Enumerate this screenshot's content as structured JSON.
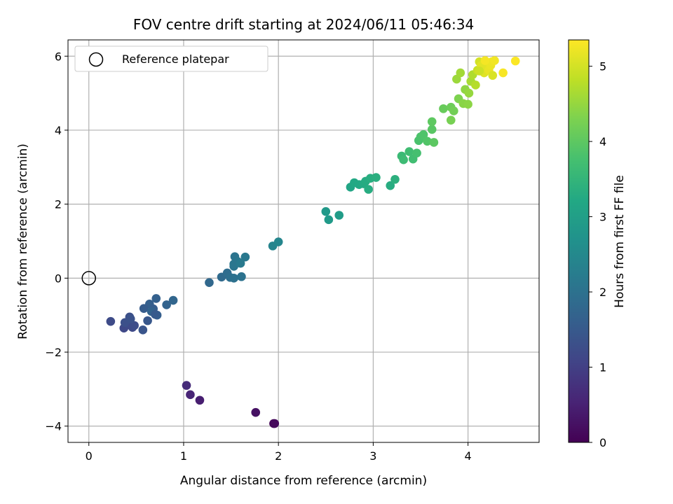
{
  "chart_data": {
    "type": "scatter",
    "title": "FOV centre drift starting at 2024/06/11 05:46:34",
    "xlabel": "Angular distance from reference (arcmin)",
    "ylabel": "Rotation from reference (arcmin)",
    "xlim": [
      -0.22,
      4.75
    ],
    "ylim": [
      -4.44,
      6.44
    ],
    "xticks": [
      0,
      1,
      2,
      3,
      4
    ],
    "yticks": [
      -4,
      -2,
      0,
      2,
      4,
      6
    ],
    "xtick_labels": [
      "0",
      "1",
      "2",
      "3",
      "4"
    ],
    "ytick_labels": [
      "−4",
      "−2",
      "0",
      "2",
      "4",
      "6"
    ],
    "grid": true,
    "legend": {
      "position": "top-left",
      "entries": [
        {
          "label": "Reference platepar",
          "marker": "open-circle",
          "color": "#000000"
        }
      ]
    },
    "reference_point": {
      "x": 0,
      "y": 0
    },
    "colorbar": {
      "label": "Hours from first FF file",
      "colormap": "viridis",
      "range": [
        0,
        5.35
      ],
      "ticks": [
        0,
        1,
        2,
        3,
        4,
        5
      ],
      "tick_labels": [
        "0",
        "1",
        "2",
        "3",
        "4",
        "5"
      ]
    },
    "series": [
      {
        "x": [
          1.95,
          1.96,
          1.76,
          1.17,
          1.07,
          1.03,
          0.23,
          0.37,
          0.4,
          0.43,
          0.46,
          0.48,
          0.38,
          0.44,
          0.57,
          0.62,
          0.64,
          0.58,
          0.68,
          0.72,
          0.71,
          0.66,
          0.82,
          0.89,
          0.7,
          1.27,
          1.4,
          1.46,
          1.49,
          1.53,
          1.54,
          1.61,
          1.53,
          1.57,
          1.65,
          1.53,
          1.6,
          1.94,
          2.0,
          2.5,
          2.53,
          2.64,
          2.76,
          2.8,
          2.85,
          2.9,
          2.92,
          2.95,
          2.97,
          3.03,
          3.18,
          3.23,
          3.3,
          3.32,
          3.38,
          3.42,
          3.46,
          3.48,
          3.5,
          3.53,
          3.57,
          3.62,
          3.64,
          3.62,
          3.74,
          3.82,
          3.85,
          3.82,
          3.9,
          3.88,
          3.92,
          3.95,
          3.97,
          4.01,
          4.0,
          4.03,
          4.05,
          4.08,
          4.1,
          4.12,
          4.15,
          4.17,
          4.2,
          4.22,
          4.24,
          4.26,
          4.25,
          4.28,
          4.14,
          4.18,
          4.37,
          4.5,
          4.12
        ],
        "y": [
          -3.93,
          -3.93,
          -3.63,
          -3.3,
          -3.15,
          -2.9,
          -1.17,
          -1.35,
          -1.22,
          -1.05,
          -1.33,
          -1.28,
          -1.2,
          -1.1,
          -1.4,
          -1.15,
          -0.7,
          -0.82,
          -0.83,
          -1.0,
          -0.55,
          -0.9,
          -0.72,
          -0.6,
          -0.98,
          -0.12,
          0.03,
          0.14,
          0.02,
          0.0,
          0.58,
          0.04,
          0.32,
          0.45,
          0.57,
          0.38,
          0.4,
          0.87,
          0.98,
          1.8,
          1.58,
          1.7,
          2.46,
          2.58,
          2.53,
          2.55,
          2.62,
          2.4,
          2.7,
          2.72,
          2.5,
          2.67,
          3.3,
          3.2,
          3.42,
          3.22,
          3.38,
          3.72,
          3.82,
          3.88,
          3.7,
          4.02,
          3.67,
          4.23,
          4.58,
          4.62,
          4.52,
          4.27,
          4.85,
          5.38,
          5.55,
          4.72,
          5.1,
          5.0,
          4.7,
          5.32,
          5.5,
          5.22,
          5.62,
          5.85,
          5.7,
          5.55,
          5.78,
          5.62,
          5.75,
          5.48,
          5.85,
          5.88,
          5.75,
          5.88,
          5.55,
          5.87,
          5.6
        ],
        "hours": [
          0.05,
          0.12,
          0.25,
          0.45,
          0.55,
          0.65,
          1.2,
          1.15,
          1.22,
          1.28,
          1.18,
          1.25,
          1.3,
          1.35,
          1.4,
          1.45,
          1.62,
          1.55,
          1.58,
          1.6,
          1.65,
          1.68,
          1.7,
          1.75,
          1.5,
          1.8,
          1.85,
          1.9,
          1.95,
          2.0,
          2.05,
          2.02,
          2.08,
          2.12,
          2.15,
          2.1,
          2.18,
          2.4,
          2.45,
          2.85,
          2.88,
          2.92,
          3.15,
          3.2,
          3.22,
          3.25,
          3.28,
          3.3,
          3.32,
          3.35,
          3.3,
          3.38,
          3.6,
          3.65,
          3.68,
          3.7,
          3.75,
          3.8,
          3.82,
          3.85,
          3.88,
          3.95,
          3.98,
          4.0,
          4.1,
          4.15,
          4.2,
          4.25,
          4.3,
          4.55,
          4.6,
          4.4,
          4.45,
          4.5,
          4.42,
          4.65,
          4.7,
          4.75,
          4.9,
          5.0,
          5.05,
          5.1,
          5.15,
          5.18,
          5.2,
          5.05,
          5.22,
          5.25,
          5.12,
          5.28,
          5.3,
          5.33,
          4.95
        ]
      }
    ]
  }
}
